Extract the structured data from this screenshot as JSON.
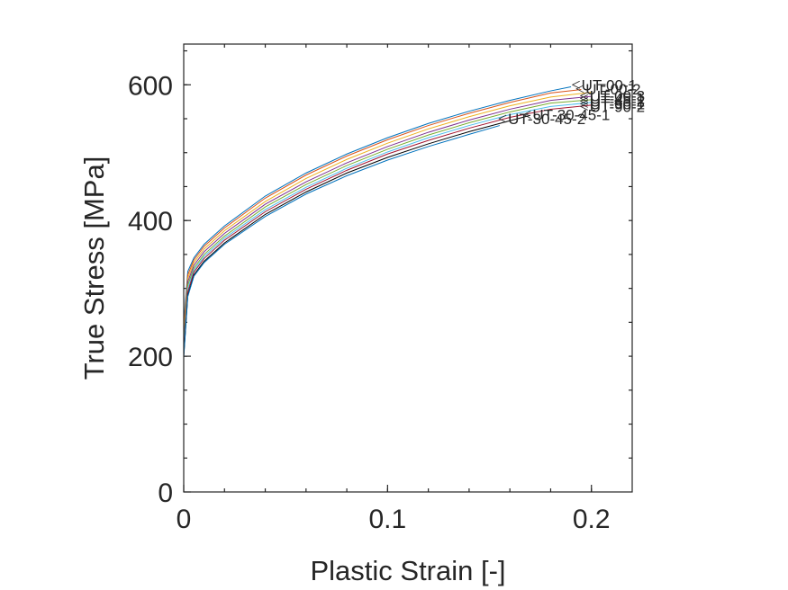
{
  "chart_data": {
    "type": "line",
    "title": "",
    "xlabel": "Plastic Strain [-]",
    "ylabel": "True Stress [MPa]",
    "xlim": [
      0,
      0.22
    ],
    "ylim": [
      0,
      660
    ],
    "xticks": [
      {
        "value": 0,
        "label": "0"
      },
      {
        "value": 0.1,
        "label": "0.1"
      },
      {
        "value": 0.2,
        "label": "0.2"
      }
    ],
    "yticks": [
      {
        "value": 0,
        "label": "0"
      },
      {
        "value": 200,
        "label": "200"
      },
      {
        "value": 400,
        "label": "400"
      },
      {
        "value": 600,
        "label": "600"
      }
    ],
    "grid": false,
    "legend": "none",
    "colors": [
      "#0072bd",
      "#d95319",
      "#edb120",
      "#7e2f8e",
      "#77ac30",
      "#4dbeee",
      "#a2142f",
      "#000000"
    ],
    "series": [
      {
        "name": "UT-00-1",
        "color": "#0072bd",
        "x": [
          0,
          0.002,
          0.005,
          0.01,
          0.02,
          0.04,
          0.06,
          0.08,
          0.1,
          0.12,
          0.14,
          0.16,
          0.18,
          0.19
        ],
        "y": [
          250,
          325,
          345,
          365,
          392,
          436,
          470,
          498,
          522,
          543,
          561,
          577,
          591,
          597
        ]
      },
      {
        "name": "UT-00-2",
        "color": "#d95319",
        "x": [
          0,
          0.002,
          0.005,
          0.01,
          0.02,
          0.04,
          0.06,
          0.08,
          0.1,
          0.12,
          0.14,
          0.16,
          0.18,
          0.195
        ],
        "y": [
          240,
          320,
          342,
          362,
          389,
          433,
          467,
          495,
          519,
          540,
          558,
          574,
          588,
          593
        ]
      },
      {
        "name": "UT-00-3",
        "color": "#edb120",
        "x": [
          0,
          0.002,
          0.005,
          0.01,
          0.02,
          0.04,
          0.06,
          0.08,
          0.1,
          0.12,
          0.14,
          0.16,
          0.18,
          0.2
        ],
        "y": [
          230,
          315,
          338,
          358,
          385,
          428,
          462,
          490,
          514,
          535,
          553,
          569,
          582,
          589
        ]
      },
      {
        "name": "UT-45-1",
        "color": "#7e2f8e",
        "x": [
          0,
          0.002,
          0.005,
          0.01,
          0.02,
          0.04,
          0.06,
          0.08,
          0.1,
          0.12,
          0.14,
          0.16,
          0.18,
          0.2
        ],
        "y": [
          220,
          310,
          334,
          354,
          381,
          424,
          457,
          485,
          509,
          530,
          548,
          564,
          577,
          583
        ]
      },
      {
        "name": "UT-45-2",
        "color": "#77ac30",
        "x": [
          0,
          0.002,
          0.005,
          0.01,
          0.02,
          0.04,
          0.06,
          0.08,
          0.1,
          0.12,
          0.14,
          0.16,
          0.18,
          0.2
        ],
        "y": [
          215,
          305,
          330,
          350,
          377,
          420,
          453,
          481,
          505,
          526,
          544,
          560,
          573,
          578
        ]
      },
      {
        "name": "UT-90-1",
        "color": "#4dbeee",
        "x": [
          0,
          0.002,
          0.005,
          0.01,
          0.02,
          0.04,
          0.06,
          0.08,
          0.1,
          0.12,
          0.14,
          0.16,
          0.18,
          0.2
        ],
        "y": [
          210,
          300,
          327,
          347,
          374,
          416,
          449,
          477,
          501,
          522,
          540,
          556,
          568,
          574
        ]
      },
      {
        "name": "UT-90-2",
        "color": "#a2142f",
        "x": [
          0,
          0.002,
          0.005,
          0.01,
          0.02,
          0.04,
          0.06,
          0.08,
          0.1,
          0.12,
          0.14,
          0.16,
          0.18,
          0.2
        ],
        "y": [
          205,
          295,
          324,
          344,
          371,
          413,
          446,
          474,
          498,
          518,
          536,
          552,
          564,
          570
        ]
      },
      {
        "name": "UT-30-45-1",
        "color": "#000000",
        "x": [
          0,
          0.002,
          0.005,
          0.01,
          0.02,
          0.04,
          0.06,
          0.08,
          0.1,
          0.12,
          0.14,
          0.16,
          0.17
        ],
        "y": [
          200,
          290,
          320,
          340,
          367,
          409,
          442,
          470,
          493,
          513,
          531,
          547,
          555
        ]
      },
      {
        "name": "UT-30-45-2",
        "color": "#0072bd",
        "x": [
          0,
          0.002,
          0.005,
          0.01,
          0.02,
          0.04,
          0.06,
          0.08,
          0.1,
          0.12,
          0.14,
          0.155
        ],
        "y": [
          198,
          288,
          318,
          338,
          365,
          406,
          439,
          466,
          489,
          509,
          527,
          540
        ]
      }
    ],
    "labels": [
      {
        "text": "UT-00-1",
        "x": 0.196,
        "y": 600
      },
      {
        "text": "UT-00-2",
        "x": 0.198,
        "y": 594
      },
      {
        "text": "UT-00-3",
        "x": 0.2,
        "y": 584
      },
      {
        "text": "UT-45-1",
        "x": 0.2,
        "y": 580
      },
      {
        "text": "UT-45-2",
        "x": 0.2,
        "y": 576
      },
      {
        "text": "UT-90-1",
        "x": 0.2,
        "y": 572
      },
      {
        "text": "UT-90-2",
        "x": 0.2,
        "y": 568
      },
      {
        "text": "UT-30-45-1",
        "x": 0.172,
        "y": 556
      },
      {
        "text": "UT-30-45-2",
        "x": 0.16,
        "y": 550
      }
    ]
  }
}
